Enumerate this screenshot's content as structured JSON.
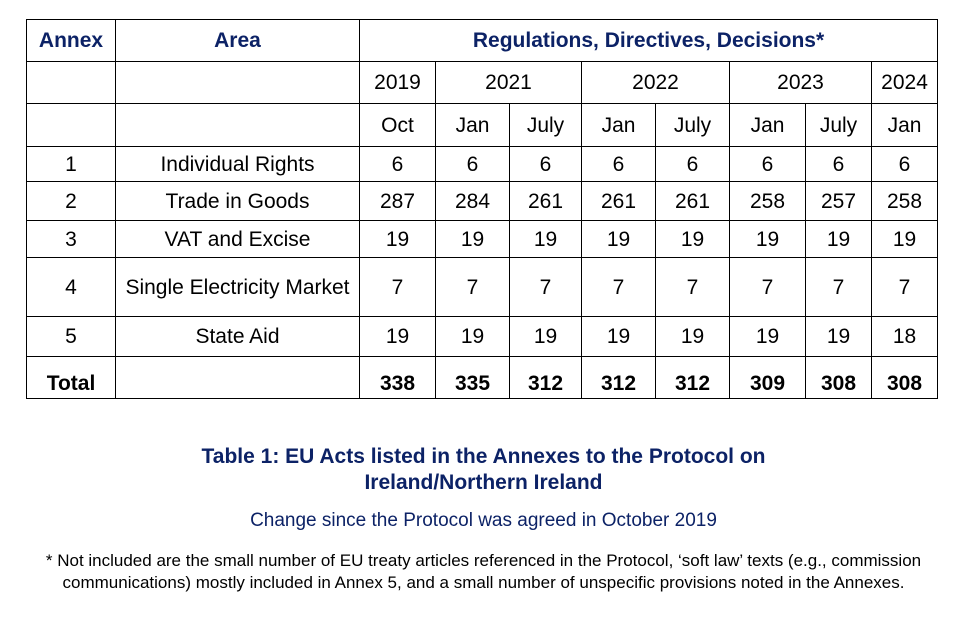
{
  "table": {
    "header": [
      "Annex",
      "Area",
      "Regulations, Directives, Decisions*"
    ],
    "years": [
      2019,
      2021,
      2022,
      2023,
      2024
    ],
    "months": [
      "Oct",
      "Jan",
      "July",
      "Jan",
      "July",
      "Jan",
      "July",
      "Jan"
    ],
    "rows": [
      [
        1,
        "Individual Rights",
        6,
        6,
        6,
        6,
        6,
        6,
        6,
        6
      ],
      [
        2,
        "Trade in Goods",
        287,
        284,
        261,
        261,
        261,
        258,
        257,
        258
      ],
      [
        3,
        "VAT and Excise",
        19,
        19,
        19,
        19,
        19,
        19,
        19,
        19
      ],
      [
        4,
        "Single Electricity Market",
        7,
        7,
        7,
        7,
        7,
        7,
        7,
        7
      ],
      [
        5,
        "State Aid",
        19,
        19,
        19,
        19,
        19,
        19,
        19,
        18
      ]
    ],
    "total": {
      "label": "Total",
      "values": [
        338,
        335,
        312,
        312,
        312,
        309,
        308,
        308
      ]
    }
  },
  "caption": {
    "title": "Table 1: EU Acts listed in the Annexes to the Protocol on Ireland/Northern Ireland",
    "subtitle": "Change since the Protocol was agreed in October 2019",
    "footnote": "* Not included are the small number of EU treaty articles referenced in the Protocol, ‘soft law’ texts (e.g., commission communications) mostly included in Annex 5, and a small number of unspecific provisions noted in the Annexes."
  }
}
